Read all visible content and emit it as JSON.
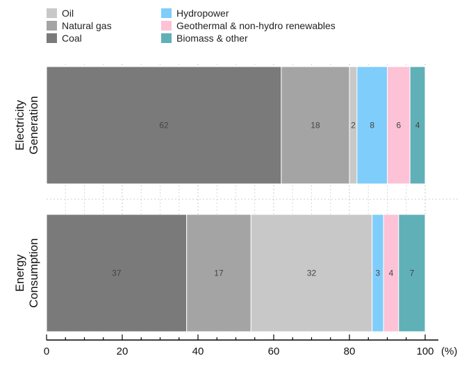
{
  "chart_data": {
    "type": "bar",
    "orientation": "horizontal",
    "stacked": true,
    "categories": [
      "Electricity Generation",
      "Energy Consumption"
    ],
    "category_labels": [
      [
        "Electricity",
        "Generation"
      ],
      [
        "Energy",
        "Consumption"
      ]
    ],
    "series": [
      {
        "name": "Coal",
        "color": "#7a7a7a",
        "values": [
          62,
          37
        ]
      },
      {
        "name": "Natural gas",
        "color": "#a4a4a4",
        "values": [
          18,
          17
        ]
      },
      {
        "name": "Oil",
        "color": "#c8c8c8",
        "values": [
          2,
          32
        ]
      },
      {
        "name": "Hydropower",
        "color": "#7fcdfb",
        "values": [
          8,
          3
        ]
      },
      {
        "name": "Geothermal & non-hydro renewables",
        "color": "#fdc2d6",
        "values": [
          6,
          4
        ]
      },
      {
        "name": "Biomass & other",
        "color": "#5fb0b7",
        "values": [
          4,
          7
        ]
      }
    ],
    "legend": {
      "placement": "top",
      "columns": [
        [
          "Oil",
          "Natural gas",
          "Coal"
        ],
        [
          "Hydropower",
          "Geothermal & non-hydro renewables",
          "Biomass & other"
        ]
      ]
    },
    "x_ticks": [
      0,
      20,
      40,
      60,
      80,
      100
    ],
    "x_unit": "(%)",
    "xlim": [
      0,
      100
    ],
    "grid": "dotted vertical"
  }
}
